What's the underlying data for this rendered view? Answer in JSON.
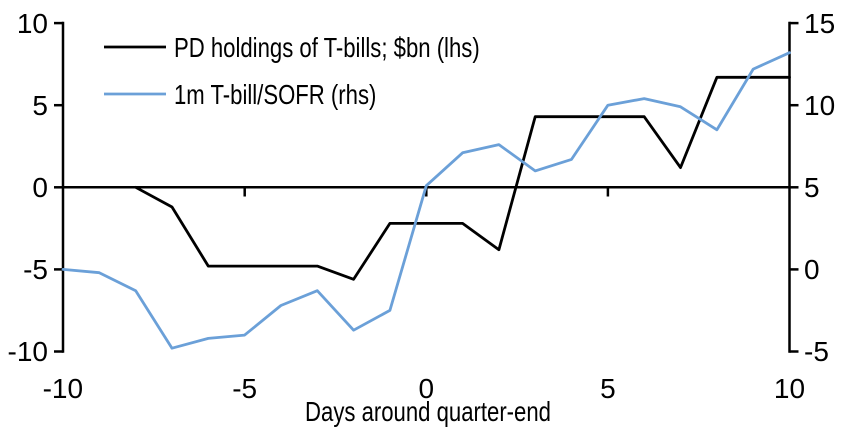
{
  "chart_data": {
    "type": "line",
    "title": "",
    "xlabel": "Days around quarter-end",
    "grid": false,
    "legend_position": "top-left",
    "x_axis": {
      "range": [
        -10,
        10
      ],
      "tick_labels": [
        "-10",
        "-5",
        "0",
        "5",
        "10"
      ],
      "tick_values": [
        -10,
        -5,
        0,
        5,
        10
      ]
    },
    "left_axis": {
      "range": [
        -10,
        10
      ],
      "tick_labels": [
        "10",
        "5",
        "0",
        "-5",
        "-10"
      ],
      "tick_values": [
        10,
        5,
        0,
        -5,
        -10
      ]
    },
    "right_axis": {
      "range": [
        -5,
        15
      ],
      "tick_labels": [
        "15",
        "10",
        "5",
        "0",
        "-5"
      ],
      "tick_values": [
        15,
        10,
        5,
        0,
        -5
      ]
    },
    "series": [
      {
        "name": "PD holdings of T-bills; $bn (lhs)",
        "axis": "left",
        "color": "#000000",
        "x": [
          -8,
          -7,
          -6,
          -5,
          -4,
          -3,
          -2,
          -1,
          0,
          1,
          2,
          3,
          4,
          5,
          6,
          7,
          8,
          9,
          10
        ],
        "values": [
          0,
          -1.2,
          -4.8,
          -4.8,
          -4.8,
          -4.8,
          -5.6,
          -2.2,
          -2.2,
          -2.2,
          -3.8,
          4.3,
          4.3,
          4.3,
          4.3,
          1.2,
          6.7,
          6.7,
          6.7
        ]
      },
      {
        "name": "1m T-bill/SOFR (rhs)",
        "axis": "right",
        "color": "#6BA0D8",
        "x": [
          -10,
          -9,
          -8,
          -7,
          -6,
          -5,
          -4,
          -3,
          -2,
          -1,
          0,
          1,
          2,
          3,
          4,
          5,
          6,
          7,
          8,
          9,
          10
        ],
        "values": [
          0,
          -0.2,
          -1.3,
          -4.8,
          -4.2,
          -4.0,
          -2.2,
          -1.3,
          -3.7,
          -2.5,
          5.1,
          7.1,
          7.6,
          6.0,
          6.7,
          10.0,
          10.4,
          9.9,
          8.5,
          12.2,
          13.2
        ]
      }
    ]
  }
}
